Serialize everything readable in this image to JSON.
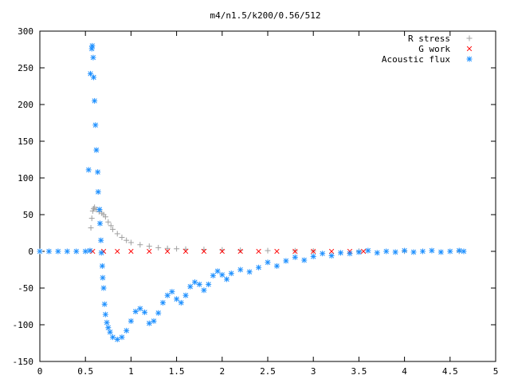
{
  "chart_data": {
    "type": "scatter",
    "title": "m4/n1.5/k200/0.56/512",
    "xlabel": "",
    "ylabel": "",
    "xlim": [
      0,
      5
    ],
    "ylim": [
      -150,
      300
    ],
    "x_ticks": [
      0,
      0.5,
      1,
      1.5,
      2,
      2.5,
      3,
      3.5,
      4,
      4.5,
      5
    ],
    "x_tick_labels": [
      "0",
      "0.5",
      "1",
      "1.5",
      "2",
      "2.5",
      "3",
      "3.5",
      "4",
      "4.5",
      "5"
    ],
    "y_ticks": [
      -150,
      -100,
      -50,
      0,
      50,
      100,
      150,
      200,
      250,
      300
    ],
    "y_tick_labels": [
      "-150",
      "-100",
      "-50",
      "0",
      "50",
      "100",
      "150",
      "200",
      "250",
      "300"
    ],
    "grid": false,
    "legend_position": "top-right",
    "series": [
      {
        "name": "R stress",
        "marker": "plus",
        "color": "#a0a0a0",
        "points": [
          [
            0.56,
            32
          ],
          [
            0.57,
            45
          ],
          [
            0.58,
            55
          ],
          [
            0.59,
            58
          ],
          [
            0.6,
            60
          ],
          [
            0.62,
            57
          ],
          [
            0.65,
            54
          ],
          [
            0.68,
            52
          ],
          [
            0.7,
            50
          ],
          [
            0.72,
            47
          ],
          [
            0.75,
            40
          ],
          [
            0.78,
            35
          ],
          [
            0.8,
            30
          ],
          [
            0.85,
            24
          ],
          [
            0.9,
            19
          ],
          [
            0.95,
            15
          ],
          [
            1.0,
            12
          ],
          [
            1.1,
            9
          ],
          [
            1.2,
            7
          ],
          [
            1.3,
            5
          ],
          [
            1.4,
            4
          ],
          [
            1.5,
            3.5
          ],
          [
            1.6,
            3
          ],
          [
            1.8,
            2.5
          ],
          [
            2.0,
            2
          ],
          [
            2.2,
            1.5
          ],
          [
            2.5,
            1
          ],
          [
            2.8,
            0.8
          ],
          [
            3.0,
            0.5
          ],
          [
            3.5,
            0.3
          ],
          [
            4.0,
            0.2
          ],
          [
            4.6,
            0.1
          ]
        ]
      },
      {
        "name": "G work",
        "marker": "cross",
        "color": "#ff0000",
        "points": [
          [
            0.58,
            0
          ],
          [
            0.7,
            0
          ],
          [
            0.85,
            0
          ],
          [
            1.0,
            0
          ],
          [
            1.2,
            0
          ],
          [
            1.4,
            0
          ],
          [
            1.6,
            0
          ],
          [
            1.8,
            0
          ],
          [
            2.0,
            0
          ],
          [
            2.2,
            0
          ],
          [
            2.4,
            0
          ],
          [
            2.6,
            0
          ],
          [
            2.8,
            0
          ],
          [
            3.0,
            0
          ],
          [
            3.2,
            0
          ],
          [
            3.4,
            0
          ],
          [
            3.55,
            0
          ]
        ]
      },
      {
        "name": "Acoustic flux",
        "marker": "star",
        "color": "#1e90ff",
        "points": [
          [
            0.0,
            0
          ],
          [
            0.1,
            0
          ],
          [
            0.2,
            0
          ],
          [
            0.3,
            0
          ],
          [
            0.4,
            0
          ],
          [
            0.5,
            0
          ],
          [
            0.55,
            1
          ],
          [
            0.535,
            111
          ],
          [
            0.555,
            242
          ],
          [
            0.57,
            276
          ],
          [
            0.575,
            280
          ],
          [
            0.585,
            264
          ],
          [
            0.59,
            237
          ],
          [
            0.6,
            205
          ],
          [
            0.61,
            172
          ],
          [
            0.62,
            138
          ],
          [
            0.635,
            108
          ],
          [
            0.64,
            81
          ],
          [
            0.655,
            57
          ],
          [
            0.66,
            38
          ],
          [
            0.67,
            15
          ],
          [
            0.675,
            -2
          ],
          [
            0.685,
            -20
          ],
          [
            0.69,
            -36
          ],
          [
            0.7,
            -50
          ],
          [
            0.71,
            -72
          ],
          [
            0.72,
            -86
          ],
          [
            0.735,
            -97
          ],
          [
            0.75,
            -104
          ],
          [
            0.77,
            -110
          ],
          [
            0.8,
            -117
          ],
          [
            0.85,
            -120
          ],
          [
            0.9,
            -117
          ],
          [
            0.95,
            -108
          ],
          [
            1.0,
            -95
          ],
          [
            1.05,
            -82
          ],
          [
            1.1,
            -78
          ],
          [
            1.15,
            -83
          ],
          [
            1.2,
            -98
          ],
          [
            1.25,
            -95
          ],
          [
            1.3,
            -84
          ],
          [
            1.35,
            -70
          ],
          [
            1.4,
            -60
          ],
          [
            1.45,
            -55
          ],
          [
            1.5,
            -65
          ],
          [
            1.55,
            -70
          ],
          [
            1.6,
            -60
          ],
          [
            1.65,
            -48
          ],
          [
            1.7,
            -42
          ],
          [
            1.75,
            -45
          ],
          [
            1.8,
            -53
          ],
          [
            1.85,
            -45
          ],
          [
            1.9,
            -33
          ],
          [
            1.95,
            -27
          ],
          [
            2.0,
            -32
          ],
          [
            2.05,
            -38
          ],
          [
            2.1,
            -30
          ],
          [
            2.2,
            -25
          ],
          [
            2.3,
            -28
          ],
          [
            2.4,
            -22
          ],
          [
            2.5,
            -15
          ],
          [
            2.6,
            -20
          ],
          [
            2.7,
            -13
          ],
          [
            2.8,
            -8
          ],
          [
            2.9,
            -12
          ],
          [
            3.0,
            -7
          ],
          [
            3.1,
            -3
          ],
          [
            3.2,
            -6
          ],
          [
            3.3,
            -2
          ],
          [
            3.4,
            -3
          ],
          [
            3.5,
            -1
          ],
          [
            3.6,
            1
          ],
          [
            3.7,
            -2
          ],
          [
            3.8,
            0
          ],
          [
            3.9,
            -1
          ],
          [
            4.0,
            1
          ],
          [
            4.1,
            -1
          ],
          [
            4.2,
            0
          ],
          [
            4.3,
            1
          ],
          [
            4.4,
            -1
          ],
          [
            4.5,
            0
          ],
          [
            4.6,
            1
          ],
          [
            4.65,
            0
          ]
        ]
      }
    ]
  }
}
